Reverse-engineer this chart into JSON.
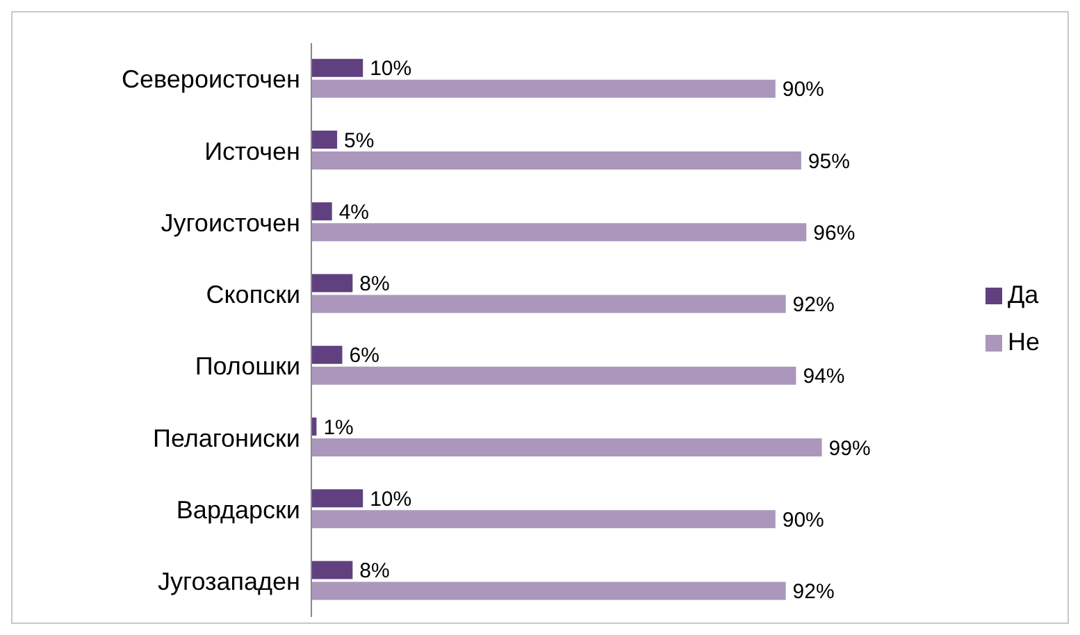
{
  "chart_data": {
    "type": "bar",
    "orientation": "horizontal",
    "categories": [
      "Североисточен",
      "Источен",
      "Југоисточен",
      "Скопски",
      "Полошки",
      "Пелагониски",
      "Вардарски",
      "Југозападен"
    ],
    "series": [
      {
        "name": "Да",
        "color": "#60407f",
        "values": [
          10,
          5,
          4,
          8,
          6,
          1,
          10,
          8
        ],
        "value_labels": [
          "10%",
          "5%",
          "4%",
          "8%",
          "6%",
          "1%",
          "10%",
          "8%"
        ]
      },
      {
        "name": "Не",
        "color": "#aa97bb",
        "values": [
          90,
          95,
          96,
          92,
          94,
          99,
          90,
          92
        ],
        "value_labels": [
          "90%",
          "95%",
          "96%",
          "92%",
          "94%",
          "99%",
          "90%",
          "92%"
        ]
      }
    ],
    "tick_labels": "y",
    "legend": "right"
  }
}
